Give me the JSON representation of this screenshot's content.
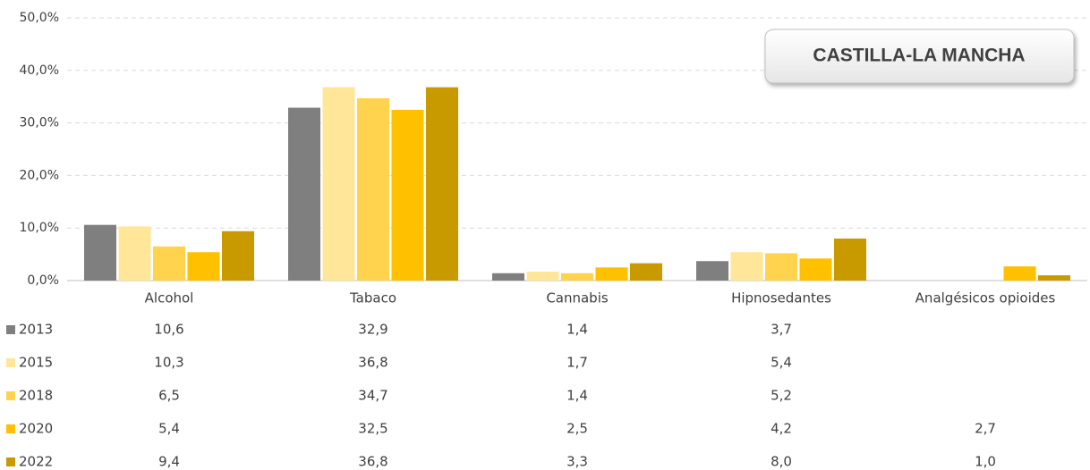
{
  "chart_data": {
    "type": "bar",
    "title": "CASTILLA-LA MANCHA",
    "categories": [
      "Alcohol",
      "Tabaco",
      "Cannabis",
      "Hipnosedantes",
      "Analgésicos opioides"
    ],
    "series": [
      {
        "name": "2013",
        "color": "#7f7f7f",
        "values": [
          10.6,
          32.9,
          1.4,
          3.7,
          null
        ],
        "value_labels": [
          "10,6",
          "32,9",
          "1,4",
          "3,7",
          null
        ]
      },
      {
        "name": "2015",
        "color": "#ffe699",
        "values": [
          10.3,
          36.8,
          1.7,
          5.4,
          null
        ],
        "value_labels": [
          "10,3",
          "36,8",
          "1,7",
          "5,4",
          null
        ]
      },
      {
        "name": "2018",
        "color": "#ffd34d",
        "values": [
          6.5,
          34.7,
          1.4,
          5.2,
          null
        ],
        "value_labels": [
          "6,5",
          "34,7",
          "1,4",
          "5,2",
          null
        ]
      },
      {
        "name": "2020",
        "color": "#ffc000",
        "values": [
          5.4,
          32.5,
          2.5,
          4.2,
          2.7
        ],
        "value_labels": [
          "5,4",
          "32,5",
          "2,5",
          "4,2",
          "2,7"
        ]
      },
      {
        "name": "2022",
        "color": "#c99a00",
        "values": [
          9.4,
          36.8,
          3.3,
          8.0,
          1.0
        ],
        "value_labels": [
          "9,4",
          "36,8",
          "3,3",
          "8,0",
          "1,0"
        ]
      }
    ],
    "ylim": [
      0,
      50
    ],
    "yticks": [
      {
        "value": 0,
        "label": "0,0%"
      },
      {
        "value": 10,
        "label": "10,0%"
      },
      {
        "value": 20,
        "label": "20,0%"
      },
      {
        "value": 30,
        "label": "30,0%"
      },
      {
        "value": 40,
        "label": "40,0%"
      },
      {
        "value": 50,
        "label": "50,0%"
      }
    ],
    "grid": true
  }
}
